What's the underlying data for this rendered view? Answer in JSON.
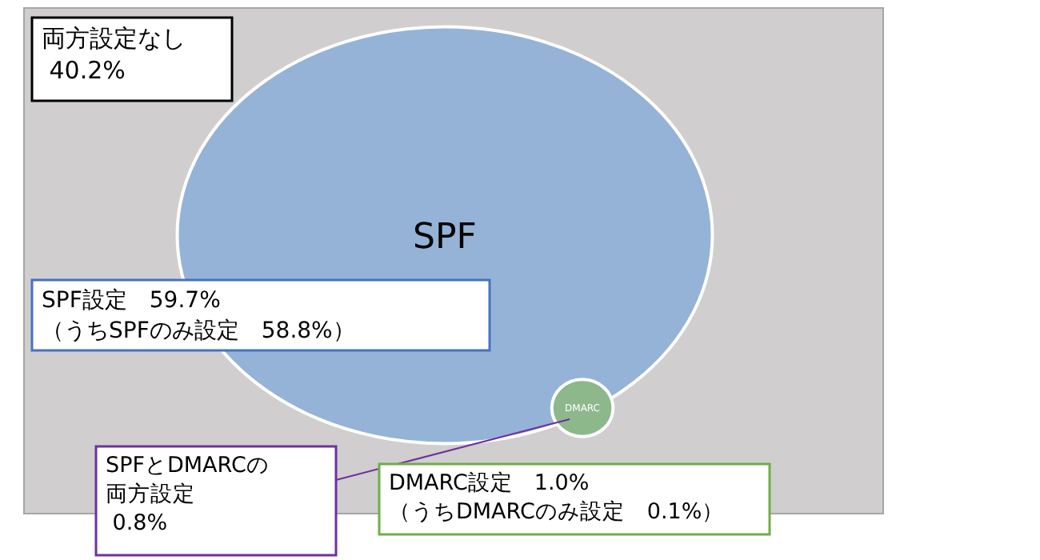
{
  "chart_data": {
    "type": "other",
    "categories": [
      "SPF",
      "DMARC"
    ],
    "values": [
      59.7,
      1.0
    ],
    "value_labels": [
      "59.7%",
      "1.0%"
    ],
    "annotations": [
      "両方設定なし\n 40.2%",
      "SPF設定",
      "（うちSPFのみ設定　58.8%）",
      "SPFとDMARCの両方設定\n 0.8%",
      "DMARC設定",
      "（うちDMARCのみ設定　0.1%）"
    ]
  }
}
